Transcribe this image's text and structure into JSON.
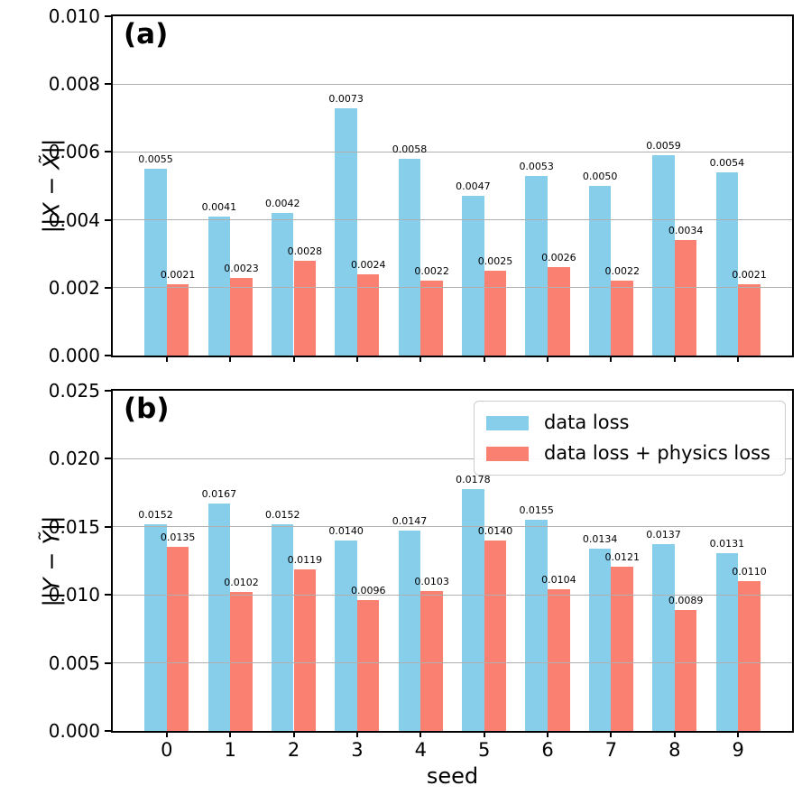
{
  "figure": {
    "background": "#ffffff",
    "grid_color": "#b0b0b0",
    "spine_color": "#000000",
    "text_color": "#000000"
  },
  "legend": {
    "position": "upper right",
    "entries": [
      {
        "label": "data loss",
        "color": "#87CEEB"
      },
      {
        "label": "data loss + physics loss",
        "color": "#FA8072"
      }
    ]
  },
  "chart_data": [
    {
      "type": "bar",
      "panel_label": "(a)",
      "ylabel": "||X − X̃||",
      "xlabel": "",
      "ylim": [
        0,
        0.01
      ],
      "yticks": [
        0,
        0.002,
        0.004,
        0.006,
        0.008,
        0.01
      ],
      "ytick_labels": [
        "0.000",
        "0.002",
        "0.004",
        "0.006",
        "0.008",
        "0.010"
      ],
      "categories": [
        "0",
        "1",
        "2",
        "3",
        "4",
        "5",
        "6",
        "7",
        "8",
        "9"
      ],
      "show_xtick_labels": false,
      "xlim": [
        -0.85,
        9.85
      ],
      "bar_width": 0.35,
      "grid": true,
      "value_label_decimals": 4,
      "series": [
        {
          "name": "data loss",
          "color": "#87CEEB",
          "values": [
            0.0055,
            0.0041,
            0.0042,
            0.0073,
            0.0058,
            0.0047,
            0.0053,
            0.005,
            0.0059,
            0.0054
          ]
        },
        {
          "name": "data loss + physics loss",
          "color": "#FA8072",
          "values": [
            0.0021,
            0.0023,
            0.0028,
            0.0024,
            0.0022,
            0.0025,
            0.0026,
            0.0022,
            0.0034,
            0.0021
          ]
        }
      ]
    },
    {
      "type": "bar",
      "panel_label": "(b)",
      "ylabel": "||Y − Ỹ||",
      "xlabel": "seed",
      "ylim": [
        0,
        0.025
      ],
      "yticks": [
        0,
        0.005,
        0.01,
        0.015,
        0.02,
        0.025
      ],
      "ytick_labels": [
        "0.000",
        "0.005",
        "0.010",
        "0.015",
        "0.020",
        "0.025"
      ],
      "categories": [
        "0",
        "1",
        "2",
        "3",
        "4",
        "5",
        "6",
        "7",
        "8",
        "9"
      ],
      "show_xtick_labels": true,
      "xlim": [
        -0.85,
        9.85
      ],
      "bar_width": 0.35,
      "grid": true,
      "value_label_decimals": 4,
      "series": [
        {
          "name": "data loss",
          "color": "#87CEEB",
          "values": [
            0.0152,
            0.0167,
            0.0152,
            0.014,
            0.0147,
            0.0178,
            0.0155,
            0.0134,
            0.0137,
            0.0131
          ]
        },
        {
          "name": "data loss + physics loss",
          "color": "#FA8072",
          "values": [
            0.0135,
            0.0102,
            0.0119,
            0.0096,
            0.0103,
            0.014,
            0.0104,
            0.0121,
            0.0089,
            0.011
          ]
        }
      ]
    }
  ]
}
